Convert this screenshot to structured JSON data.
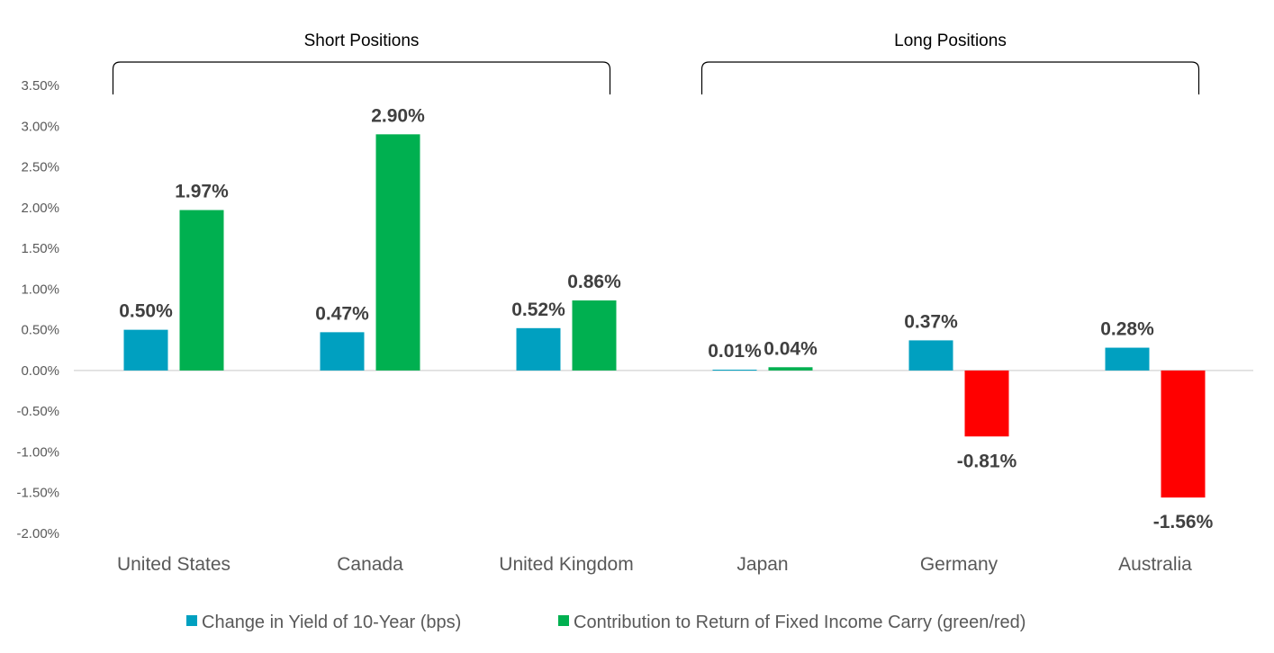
{
  "chart_data": {
    "type": "bar",
    "title": "",
    "xlabel": "",
    "ylabel": "",
    "categories": [
      "United States",
      "Canada",
      "United Kingdom",
      "Japan",
      "Germany",
      "Australia"
    ],
    "series": [
      {
        "name": "Change in Yield of 10-Year (bps)",
        "values": [
          0.5,
          0.47,
          0.52,
          0.01,
          0.37,
          0.28
        ],
        "labels": [
          "0.50%",
          "0.47%",
          "0.52%",
          "0.01%",
          "0.37%",
          "0.28%"
        ],
        "color": "#00A0C0"
      },
      {
        "name": "Contribution to Return of Fixed Income Carry (green/red)",
        "values": [
          1.97,
          2.9,
          0.86,
          0.04,
          -0.81,
          -1.56
        ],
        "labels": [
          "1.97%",
          "2.90%",
          "0.86%",
          "0.04%",
          "-0.81%",
          "-1.56%"
        ],
        "color_positive": "#00B050",
        "color_negative": "#FF0000"
      }
    ],
    "ylim": [
      -2.0,
      3.5
    ],
    "y_ticks": [
      3.5,
      3.0,
      2.5,
      2.0,
      1.5,
      1.0,
      0.5,
      0.0,
      -0.5,
      -1.0,
      -1.5,
      -2.0
    ],
    "y_tick_labels": [
      "3.50%",
      "3.00%",
      "2.50%",
      "2.00%",
      "1.50%",
      "1.00%",
      "0.50%",
      "0.00%",
      "-0.50%",
      "-1.00%",
      "-1.50%",
      "-2.00%"
    ],
    "grid": false,
    "legend_position": "bottom",
    "groups": [
      {
        "label": "Short Positions",
        "categories": [
          "United States",
          "Canada",
          "United Kingdom"
        ]
      },
      {
        "label": "Long Positions",
        "categories": [
          "Japan",
          "Germany",
          "Australia"
        ]
      }
    ]
  }
}
